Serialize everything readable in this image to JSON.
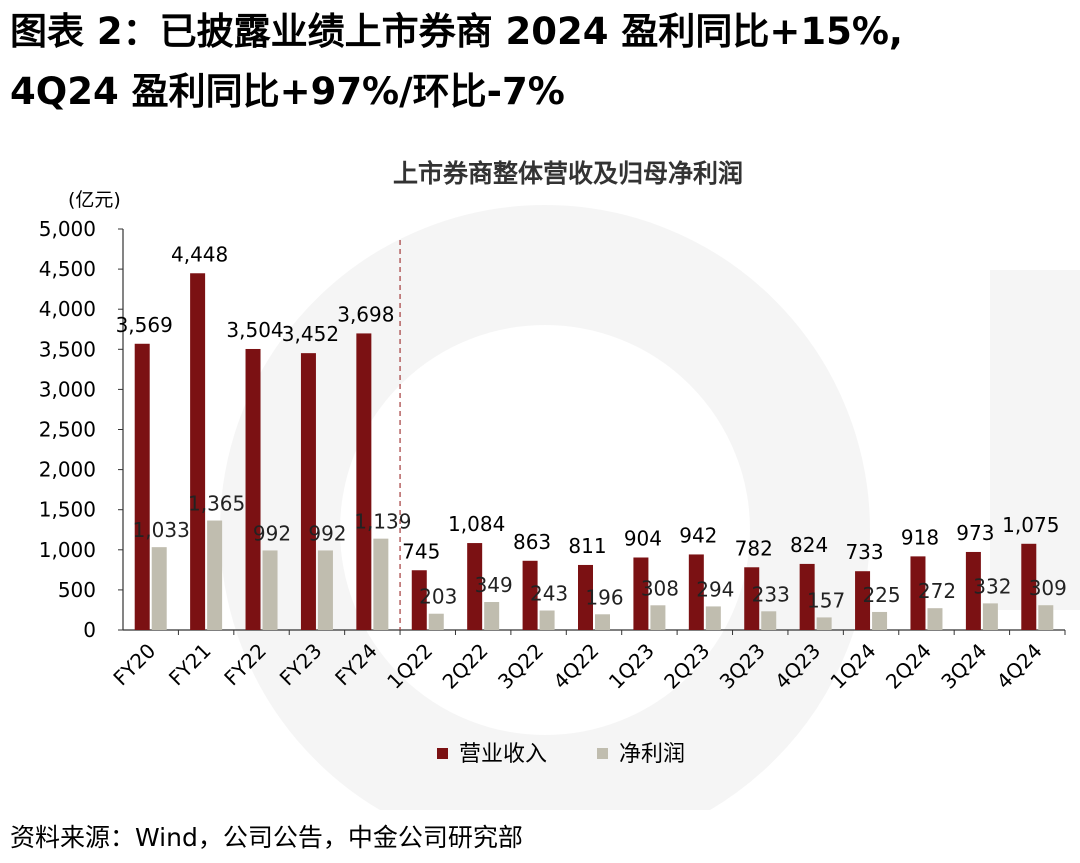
{
  "figure": {
    "title_line1": "图表 2：已披露业绩上市券商 2024 盈利同比+15%,",
    "title_line2": "4Q24 盈利同比+97%/环比-7%",
    "source": "资料来源：Wind，公司公告，中金公司研究部"
  },
  "chart_data": {
    "type": "bar",
    "title": "上市券商整体营收及归母净利润",
    "ylabel": "(亿元)",
    "ylim": [
      0,
      5000
    ],
    "yticks": [
      0,
      500,
      1000,
      1500,
      2000,
      2500,
      3000,
      3500,
      4000,
      4500,
      5000
    ],
    "ytick_labels": [
      "0",
      "500",
      "1,000",
      "1,500",
      "2,000",
      "2,500",
      "3,000",
      "3,500",
      "4,000",
      "4,500",
      "5,000"
    ],
    "categories": [
      "FY20",
      "FY21",
      "FY22",
      "FY23",
      "FY24",
      "1Q22",
      "2Q22",
      "3Q22",
      "4Q22",
      "1Q23",
      "2Q23",
      "3Q23",
      "4Q23",
      "1Q24",
      "2Q24",
      "3Q24",
      "4Q24"
    ],
    "series": [
      {
        "name": "营业收入",
        "color": "#7b1113",
        "values": [
          3569,
          4448,
          3504,
          3452,
          3698,
          745,
          1084,
          863,
          811,
          904,
          942,
          782,
          824,
          733,
          918,
          973,
          1075
        ],
        "labels": [
          "3,569",
          "4,448",
          "3,504",
          "3,452",
          "3,698",
          "745",
          "1,084",
          "863",
          "811",
          "904",
          "942",
          "782",
          "824",
          "733",
          "918",
          "973",
          "1,075"
        ]
      },
      {
        "name": "净利润",
        "color": "#c0bdaf",
        "values": [
          1033,
          1365,
          992,
          992,
          1139,
          203,
          349,
          243,
          196,
          308,
          294,
          233,
          157,
          225,
          272,
          332,
          309
        ],
        "labels": [
          "1,033",
          "1,365",
          "992",
          "992",
          "1,139",
          "203",
          "349",
          "243",
          "196",
          "308",
          "294",
          "233",
          "157",
          "225",
          "272",
          "332",
          "309"
        ]
      }
    ],
    "separator_after_category": "FY24",
    "legend_position": "bottom-center",
    "grid": false
  }
}
